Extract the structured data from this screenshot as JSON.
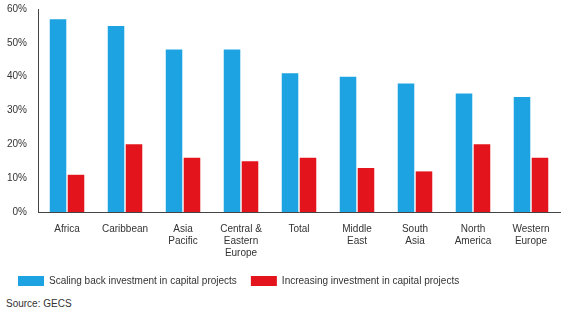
{
  "chart_data": {
    "type": "bar",
    "categories": [
      "Africa",
      "Caribbean",
      "Asia Pacific",
      "Central & Eastern Europe",
      "Total",
      "Middle East",
      "South Asia",
      "North America",
      "Western Europe"
    ],
    "series": [
      {
        "name": "Scaling back investment in capital projects",
        "color": "#1ea3e2",
        "values": [
          57,
          55,
          48,
          48,
          41,
          40,
          38,
          35,
          34
        ]
      },
      {
        "name": "Increasing investment in capital projects",
        "color": "#e3141b",
        "values": [
          11,
          20,
          16,
          15,
          16,
          13,
          12,
          20,
          16
        ]
      }
    ],
    "ylim": [
      0,
      60
    ],
    "yticks": [
      {
        "value": 0,
        "label": "0%"
      },
      {
        "value": 10,
        "label": "10%"
      },
      {
        "value": 20,
        "label": "20%"
      },
      {
        "value": 30,
        "label": "30%"
      },
      {
        "value": 40,
        "label": "40%"
      },
      {
        "value": 50,
        "label": "50%"
      },
      {
        "value": 60,
        "label": "60%"
      }
    ],
    "grid": false,
    "legend": "bottom",
    "source": "Source: GECS"
  }
}
